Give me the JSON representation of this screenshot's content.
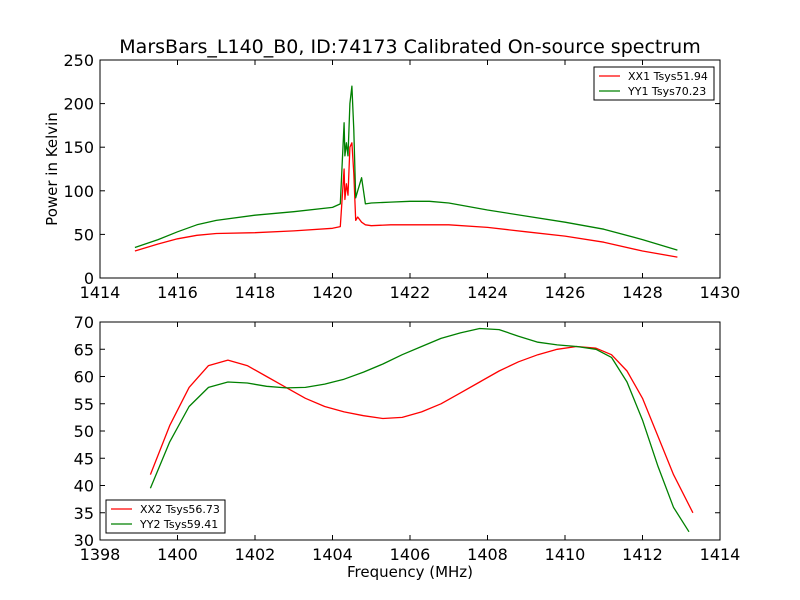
{
  "title": "MarsBars_L140_B0, ID:74173 Calibrated On-source spectrum",
  "colors": {
    "red": "#ff0000",
    "green": "#008000"
  },
  "chart_data": [
    {
      "type": "line",
      "xlabel": "",
      "ylabel": "Power in Kelvin",
      "xlim": [
        1414,
        1430
      ],
      "ylim": [
        0,
        250
      ],
      "xticks": [
        1414,
        1416,
        1418,
        1420,
        1422,
        1424,
        1426,
        1428,
        1430
      ],
      "yticks": [
        0,
        50,
        100,
        150,
        200,
        250
      ],
      "legend_position": "top-right",
      "series": [
        {
          "name": "XX1 Tsys51.94",
          "color": "#ff0000",
          "x": [
            1414.9,
            1415.5,
            1416.0,
            1416.5,
            1417.0,
            1418.0,
            1419.0,
            1420.0,
            1420.2,
            1420.3,
            1420.32,
            1420.36,
            1420.4,
            1420.45,
            1420.5,
            1420.55,
            1420.6,
            1420.65,
            1420.75,
            1420.85,
            1421.0,
            1421.5,
            1422.0,
            1422.5,
            1423.0,
            1424.0,
            1425.0,
            1426.0,
            1427.0,
            1428.0,
            1428.9
          ],
          "y": [
            31,
            39,
            45,
            49,
            51,
            52,
            54,
            57,
            59,
            125,
            90,
            108,
            95,
            150,
            155,
            120,
            66,
            70,
            64,
            61,
            60,
            61,
            61,
            61,
            61,
            58,
            53,
            48,
            41,
            31,
            24
          ]
        },
        {
          "name": "YY1 Tsys70.23",
          "color": "#008000",
          "x": [
            1414.9,
            1415.5,
            1416.0,
            1416.5,
            1417.0,
            1418.0,
            1419.0,
            1420.0,
            1420.2,
            1420.3,
            1420.32,
            1420.36,
            1420.4,
            1420.45,
            1420.5,
            1420.55,
            1420.6,
            1420.65,
            1420.75,
            1420.85,
            1421.0,
            1421.5,
            1422.0,
            1422.5,
            1423.0,
            1424.0,
            1425.0,
            1426.0,
            1427.0,
            1428.0,
            1428.9
          ],
          "y": [
            35,
            44,
            53,
            61,
            66,
            72,
            76,
            81,
            85,
            178,
            140,
            155,
            140,
            200,
            220,
            170,
            92,
            100,
            115,
            85,
            86,
            87,
            88,
            88,
            86,
            78,
            71,
            64,
            56,
            44,
            32
          ]
        }
      ]
    },
    {
      "type": "line",
      "xlabel": "Frequency (MHz)",
      "ylabel": "",
      "xlim": [
        1398,
        1414
      ],
      "ylim": [
        30,
        70
      ],
      "xticks": [
        1398,
        1400,
        1402,
        1404,
        1406,
        1408,
        1410,
        1412,
        1414
      ],
      "yticks": [
        30,
        35,
        40,
        45,
        50,
        55,
        60,
        65,
        70
      ],
      "legend_position": "bottom-left",
      "series": [
        {
          "name": "XX2 Tsys56.73",
          "color": "#ff0000",
          "x": [
            1399.3,
            1399.8,
            1400.3,
            1400.8,
            1401.3,
            1401.8,
            1402.3,
            1402.8,
            1403.3,
            1403.8,
            1404.3,
            1404.8,
            1405.3,
            1405.8,
            1406.3,
            1406.8,
            1407.3,
            1407.8,
            1408.3,
            1408.8,
            1409.3,
            1409.8,
            1410.3,
            1410.8,
            1411.2,
            1411.6,
            1412.0,
            1412.4,
            1412.8,
            1413.3
          ],
          "y": [
            42,
            51,
            58,
            62,
            63,
            62,
            60,
            58,
            56,
            54.5,
            53.5,
            52.8,
            52.3,
            52.5,
            53.5,
            55,
            57,
            59,
            61,
            62.7,
            64,
            65,
            65.5,
            65.2,
            64,
            61,
            56,
            49,
            42,
            35
          ]
        },
        {
          "name": "YY2 Tsys59.41",
          "color": "#008000",
          "x": [
            1399.3,
            1399.8,
            1400.3,
            1400.8,
            1401.3,
            1401.8,
            1402.3,
            1402.8,
            1403.3,
            1403.8,
            1404.3,
            1404.8,
            1405.3,
            1405.8,
            1406.3,
            1406.8,
            1407.3,
            1407.8,
            1408.3,
            1408.8,
            1409.3,
            1409.8,
            1410.3,
            1410.8,
            1411.2,
            1411.6,
            1412.0,
            1412.4,
            1412.8,
            1413.2
          ],
          "y": [
            39.5,
            48,
            54.5,
            58,
            59,
            58.8,
            58.2,
            57.9,
            58,
            58.6,
            59.5,
            60.8,
            62.3,
            64,
            65.5,
            67,
            68,
            68.8,
            68.6,
            67.4,
            66.3,
            65.8,
            65.5,
            65,
            63.5,
            59,
            52,
            43.5,
            36,
            31.5
          ]
        }
      ]
    }
  ]
}
